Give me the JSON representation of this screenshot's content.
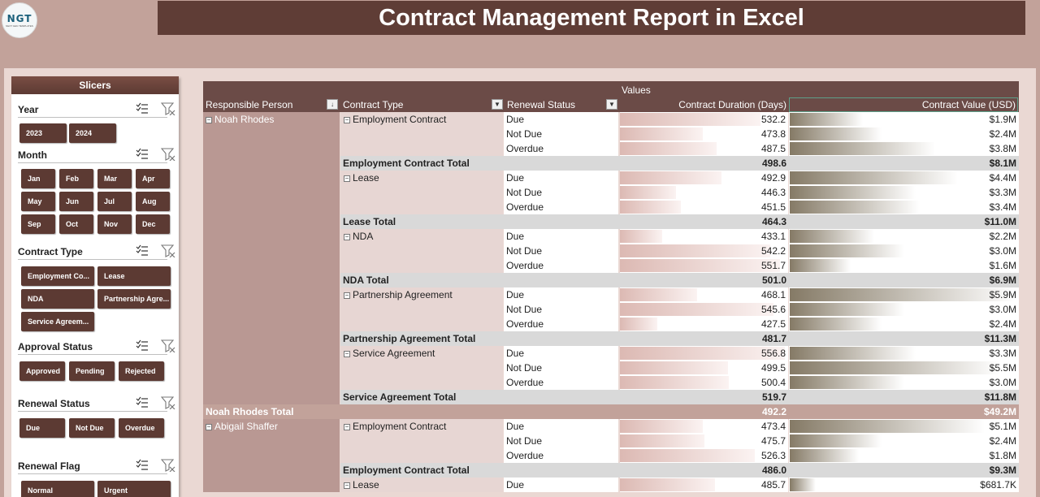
{
  "header": {
    "title": "Contract Management Report in Excel",
    "logo_text": "NGT",
    "logo_sub": "NEXT GEN TEMPLATES"
  },
  "slicers": {
    "title": "Slicers",
    "groups": [
      {
        "title": "Year",
        "items": [
          "2023",
          "2024"
        ]
      },
      {
        "title": "Month",
        "items": [
          "Jan",
          "Feb",
          "Mar",
          "Apr",
          "May",
          "Jun",
          "Jul",
          "Aug",
          "Sep",
          "Oct",
          "Nov",
          "Dec"
        ]
      },
      {
        "title": "Contract Type",
        "items": [
          "Employment Co...",
          "Lease",
          "NDA",
          "Partnership Agre...",
          "Service Agreem..."
        ]
      },
      {
        "title": "Approval Status",
        "items": [
          "Approved",
          "Pending",
          "Rejected"
        ]
      },
      {
        "title": "Renewal Status",
        "items": [
          "Due",
          "Not Due",
          "Overdue"
        ]
      },
      {
        "title": "Renewal Flag",
        "items": [
          "Normal",
          "Urgent"
        ]
      }
    ]
  },
  "pivot": {
    "values_label": "Values",
    "headers": [
      "Responsible Person",
      "Contract Type",
      "Renewal Status",
      "Contract Duration (Days)",
      "Contract Value (USD)"
    ],
    "rows": [
      {
        "kind": "detail",
        "person": "Noah Rhodes",
        "ctype": "Employment Contract",
        "status": "Due",
        "duration": 532.2,
        "value": "$1.9M",
        "vnum": 1.9
      },
      {
        "kind": "detail",
        "status": "Not Due",
        "duration": 473.8,
        "value": "$2.4M",
        "vnum": 2.4
      },
      {
        "kind": "detail",
        "status": "Overdue",
        "duration": 487.5,
        "value": "$3.8M",
        "vnum": 3.8
      },
      {
        "kind": "subtotal",
        "label": "Employment Contract Total",
        "duration": "498.6",
        "value": "$8.1M"
      },
      {
        "kind": "detail",
        "ctype": "Lease",
        "status": "Due",
        "duration": 492.9,
        "value": "$4.4M",
        "vnum": 4.4
      },
      {
        "kind": "detail",
        "status": "Not Due",
        "duration": 446.3,
        "value": "$3.3M",
        "vnum": 3.3
      },
      {
        "kind": "detail",
        "status": "Overdue",
        "duration": 451.5,
        "value": "$3.4M",
        "vnum": 3.4
      },
      {
        "kind": "subtotal",
        "label": "Lease Total",
        "duration": "464.3",
        "value": "$11.0M"
      },
      {
        "kind": "detail",
        "ctype": "NDA",
        "status": "Due",
        "duration": 433.1,
        "value": "$2.2M",
        "vnum": 2.2
      },
      {
        "kind": "detail",
        "status": "Not Due",
        "duration": 542.2,
        "value": "$3.0M",
        "vnum": 3.0
      },
      {
        "kind": "detail",
        "status": "Overdue",
        "duration": 551.7,
        "value": "$1.6M",
        "vnum": 1.6
      },
      {
        "kind": "subtotal",
        "label": "NDA Total",
        "duration": "501.0",
        "value": "$6.9M"
      },
      {
        "kind": "detail",
        "ctype": "Partnership Agreement",
        "status": "Due",
        "duration": 468.1,
        "value": "$5.9M",
        "vnum": 5.9
      },
      {
        "kind": "detail",
        "status": "Not Due",
        "duration": 545.6,
        "value": "$3.0M",
        "vnum": 3.0
      },
      {
        "kind": "detail",
        "status": "Overdue",
        "duration": 427.5,
        "value": "$2.4M",
        "vnum": 2.4
      },
      {
        "kind": "subtotal",
        "label": "Partnership Agreement Total",
        "duration": "481.7",
        "value": "$11.3M"
      },
      {
        "kind": "detail",
        "ctype": "Service Agreement",
        "status": "Due",
        "duration": 556.8,
        "value": "$3.3M",
        "vnum": 3.3
      },
      {
        "kind": "detail",
        "status": "Not Due",
        "duration": 499.5,
        "value": "$5.5M",
        "vnum": 5.5
      },
      {
        "kind": "detail",
        "status": "Overdue",
        "duration": 500.4,
        "value": "$3.0M",
        "vnum": 3.0
      },
      {
        "kind": "subtotal",
        "label": "Service Agreement Total",
        "duration": "519.7",
        "value": "$11.8M"
      },
      {
        "kind": "total",
        "label": "Noah Rhodes Total",
        "duration": "492.2",
        "value": "$49.2M"
      },
      {
        "kind": "detail",
        "person": "Abigail Shaffer",
        "ctype": "Employment Contract",
        "status": "Due",
        "duration": 473.4,
        "value": "$5.1M",
        "vnum": 5.1
      },
      {
        "kind": "detail",
        "status": "Not Due",
        "duration": 475.7,
        "value": "$2.4M",
        "vnum": 2.4
      },
      {
        "kind": "detail",
        "status": "Overdue",
        "duration": 526.3,
        "value": "$1.8M",
        "vnum": 1.8
      },
      {
        "kind": "subtotal",
        "label": "Employment Contract Total",
        "duration": "486.0",
        "value": "$9.3M"
      },
      {
        "kind": "detail",
        "ctype": "Lease",
        "status": "Due",
        "duration": 485.7,
        "value": "$681.7K",
        "vnum": 0.6817
      }
    ]
  },
  "colors": {
    "title_bg": "#5f3d36",
    "background": "#c2a29a",
    "slicer_button": "#5c3a33",
    "header_row": "#6b4b47",
    "total_row": "#c2a29a",
    "subtotal_row": "#d9d9d9"
  }
}
